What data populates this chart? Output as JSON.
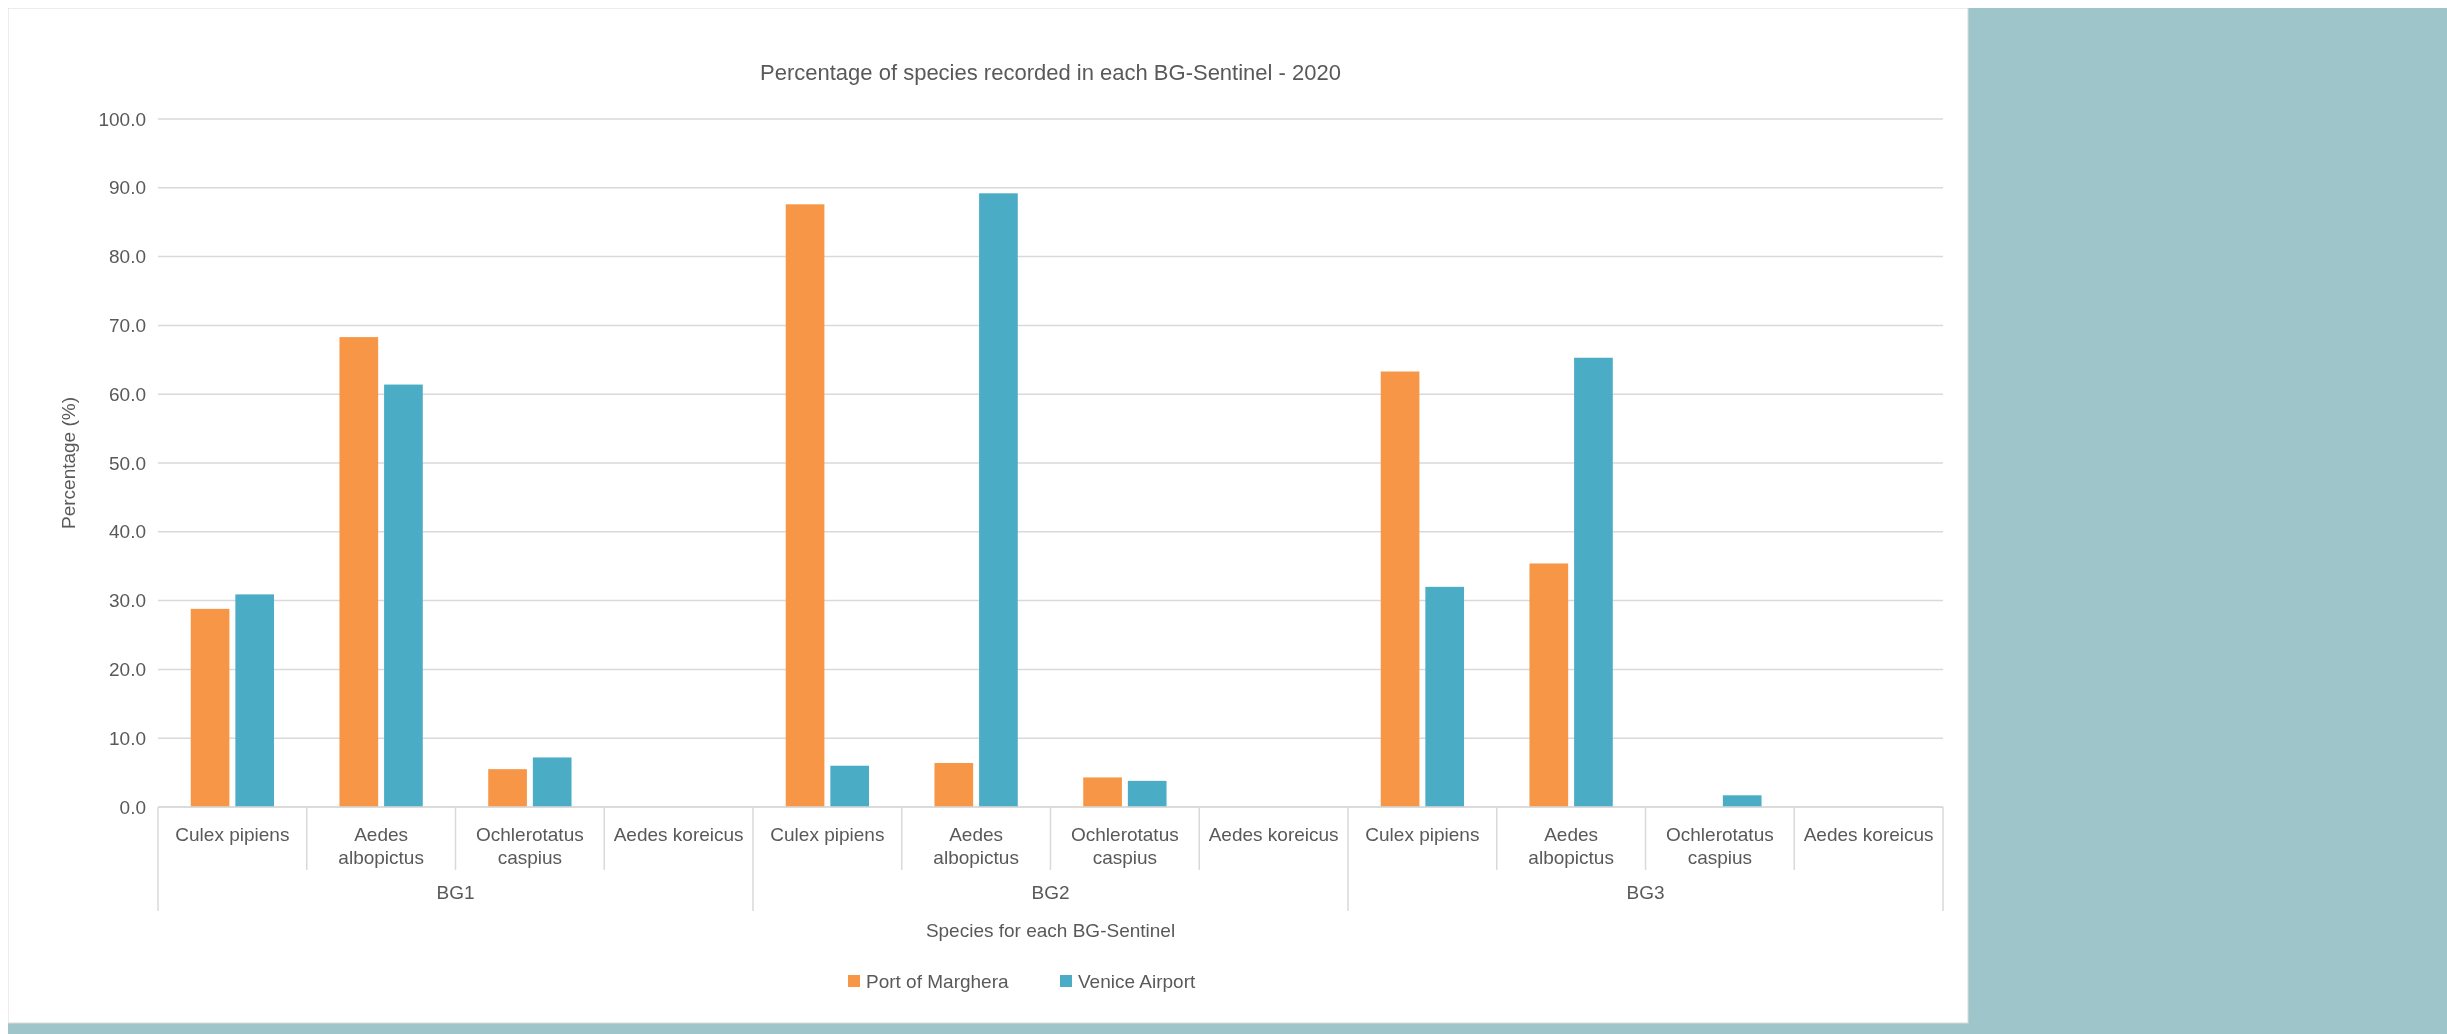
{
  "chart_data": {
    "type": "bar",
    "title": "Percentage of species recorded in each BG-Sentinel - 2020",
    "xlabel": "Species for each BG-Sentinel",
    "ylabel": "Percentage (%)",
    "categories": [
      "Culex pipiens",
      "Aedes albopictus",
      "Ochlerotatus caspius",
      "Aedes koreicus",
      "Culex pipiens",
      "Aedes albopictus",
      "Ochlerotatus caspius",
      "Aedes koreicus",
      "Culex pipiens",
      "Aedes albopictus",
      "Ochlerotatus caspius",
      "Aedes koreicus"
    ],
    "series": [
      {
        "name": "Port of Marghera",
        "color": "#f79646",
        "values": [
          28.8,
          68.3,
          5.5,
          0,
          87.6,
          6.4,
          4.3,
          0,
          63.3,
          35.4,
          0,
          0
        ]
      },
      {
        "name": "Venice Airport",
        "color": "#4bacc6",
        "values": [
          30.9,
          61.4,
          7.2,
          0,
          6.0,
          89.2,
          3.8,
          0,
          32.0,
          65.3,
          1.7,
          0
        ]
      }
    ],
    "ylim": [
      0,
      100
    ],
    "yticks": [
      {
        "value": 0,
        "label": "0.0"
      },
      {
        "value": 10,
        "label": "10.0"
      },
      {
        "value": 20,
        "label": "20.0"
      },
      {
        "value": 30,
        "label": "30.0"
      },
      {
        "value": 40,
        "label": "40.0"
      },
      {
        "value": 50,
        "label": "50.0"
      },
      {
        "value": 60,
        "label": "60.0"
      },
      {
        "value": 70,
        "label": "70.0"
      },
      {
        "value": 80,
        "label": "80.0"
      },
      {
        "value": 90,
        "label": "90.0"
      },
      {
        "value": 100,
        "label": "100.0"
      }
    ],
    "grid": "y",
    "legend": "bottom",
    "annotations": [
      "BG1",
      "BG2",
      "BG3"
    ]
  }
}
